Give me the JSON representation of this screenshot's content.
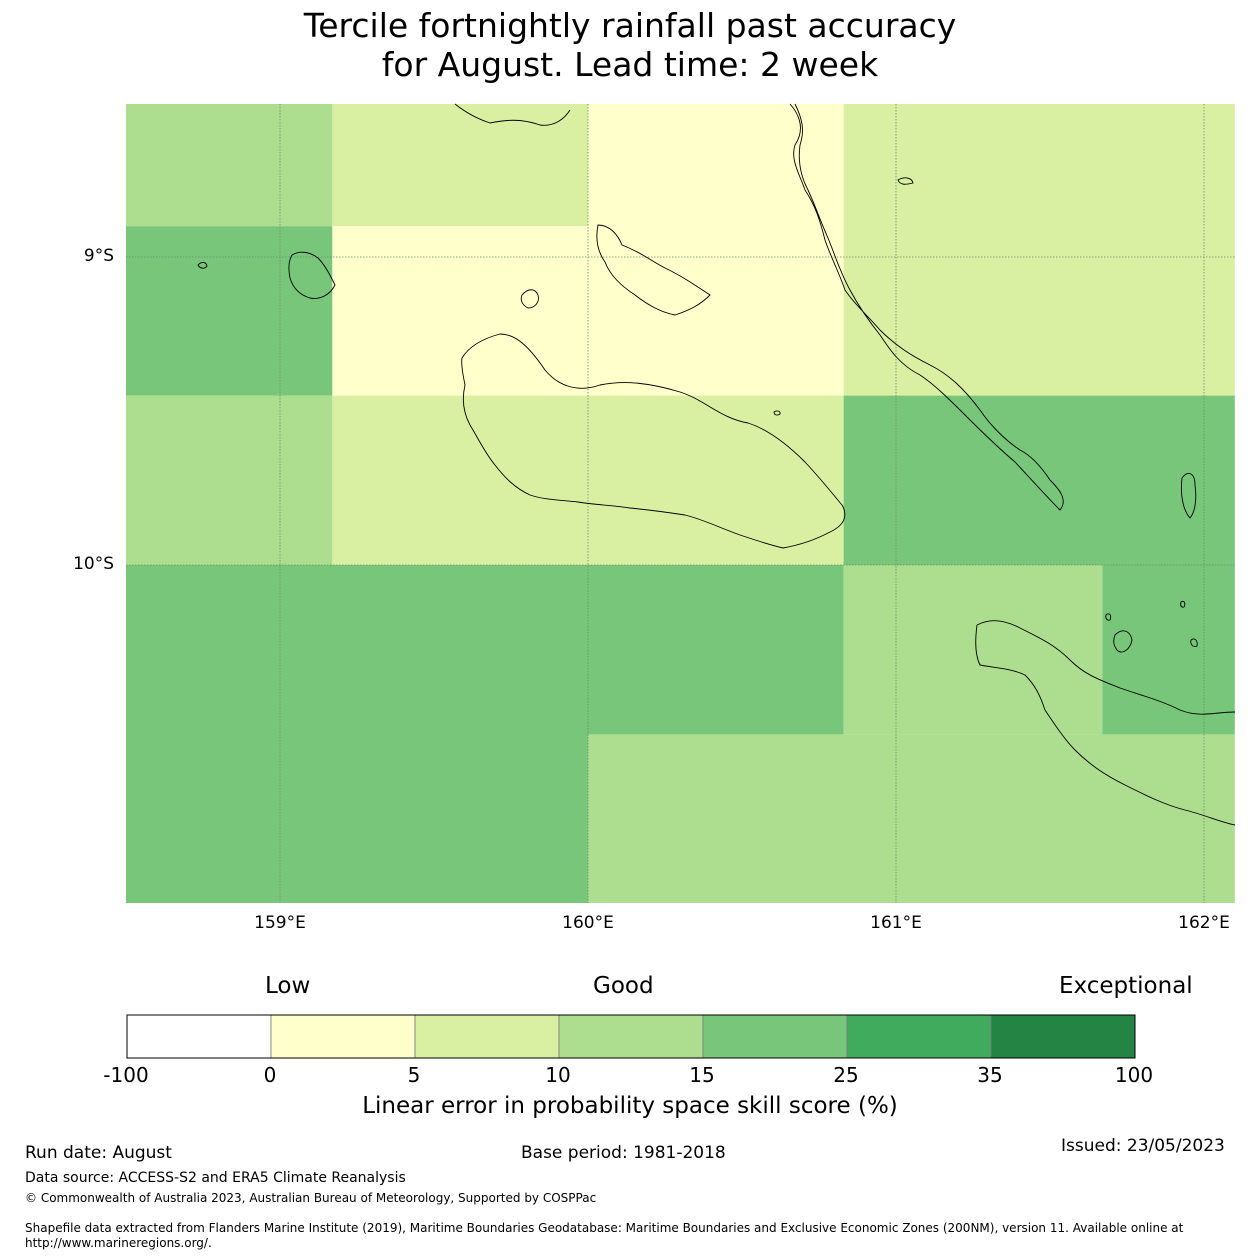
{
  "title_line1": "Tercile fortnightly rainfall past accuracy",
  "title_line2": "for August. Lead time: 2 week",
  "map": {
    "lon_range": [
      158.5,
      162.1
    ],
    "lat_range": [
      -11.1,
      -8.5
    ],
    "lat_labels": [
      "9°S",
      "10°S"
    ],
    "lon_labels": [
      "159°E",
      "160°E",
      "161°E",
      "162°E"
    ],
    "grid_cells": [
      {
        "lon": [
          158.5,
          159.17
        ],
        "lat": [
          -8.9,
          -8.5
        ],
        "color": "#addd8e"
      },
      {
        "lon": [
          159.17,
          160.0
        ],
        "lat": [
          -8.9,
          -8.5
        ],
        "color": "#d9f0a3"
      },
      {
        "lon": [
          160.0,
          160.83
        ],
        "lat": [
          -9.45,
          -8.5
        ],
        "color": "#ffffcc"
      },
      {
        "lon": [
          160.83,
          162.1
        ],
        "lat": [
          -9.45,
          -8.5
        ],
        "color": "#d9f0a3"
      },
      {
        "lon": [
          158.5,
          159.17
        ],
        "lat": [
          -9.45,
          -8.9
        ],
        "color": "#78c679"
      },
      {
        "lon": [
          159.17,
          160.0
        ],
        "lat": [
          -9.45,
          -8.9
        ],
        "color": "#ffffcc"
      },
      {
        "lon": [
          158.5,
          159.17
        ],
        "lat": [
          -10.0,
          -9.45
        ],
        "color": "#addd8e"
      },
      {
        "lon": [
          159.17,
          160.83
        ],
        "lat": [
          -10.0,
          -9.45
        ],
        "color": "#d9f0a3"
      },
      {
        "lon": [
          160.83,
          162.1
        ],
        "lat": [
          -10.0,
          -9.45
        ],
        "color": "#78c679"
      },
      {
        "lon": [
          158.5,
          160.0
        ],
        "lat": [
          -11.1,
          -10.0
        ],
        "color": "#78c679"
      },
      {
        "lon": [
          160.0,
          160.83
        ],
        "lat": [
          -10.55,
          -10.0
        ],
        "color": "#78c679"
      },
      {
        "lon": [
          160.83,
          161.67
        ],
        "lat": [
          -10.55,
          -10.0
        ],
        "color": "#addd8e"
      },
      {
        "lon": [
          161.67,
          162.1
        ],
        "lat": [
          -10.55,
          -10.0
        ],
        "color": "#78c679"
      },
      {
        "lon": [
          160.0,
          162.1
        ],
        "lat": [
          -11.1,
          -10.55
        ],
        "color": "#addd8e"
      }
    ]
  },
  "legend": {
    "category_low": "Low",
    "category_good": "Good",
    "category_exceptional": "Exceptional",
    "ticks": [
      "-100",
      "0",
      "5",
      "10",
      "15",
      "25",
      "35",
      "100"
    ],
    "colors": [
      "#ffffff",
      "#ffffcc",
      "#d9f0a3",
      "#addd8e",
      "#78c679",
      "#41ab5d",
      "#238443"
    ],
    "title": "Linear error in probability space skill score (%)"
  },
  "footer": {
    "run_date": "Run date: August",
    "base_period": "Base period: 1981-2018",
    "issued": "Issued: 23/05/2023",
    "data_source": "Data source: ACCESS-S2 and ERA5 Climate Reanalysis",
    "copyright": "© Commonwealth of Australia 2023, Australian Bureau of Meteorology, Supported by COSPPac",
    "shapefile_line1": "Shapefile data extracted from Flanders Marine Institute (2019), Maritime Boundaries Geodatabase: Maritime Boundaries and Exclusive Economic Zones (200NM), version 11. Available online at",
    "shapefile_line2": "http://www.marineregions.org/."
  }
}
